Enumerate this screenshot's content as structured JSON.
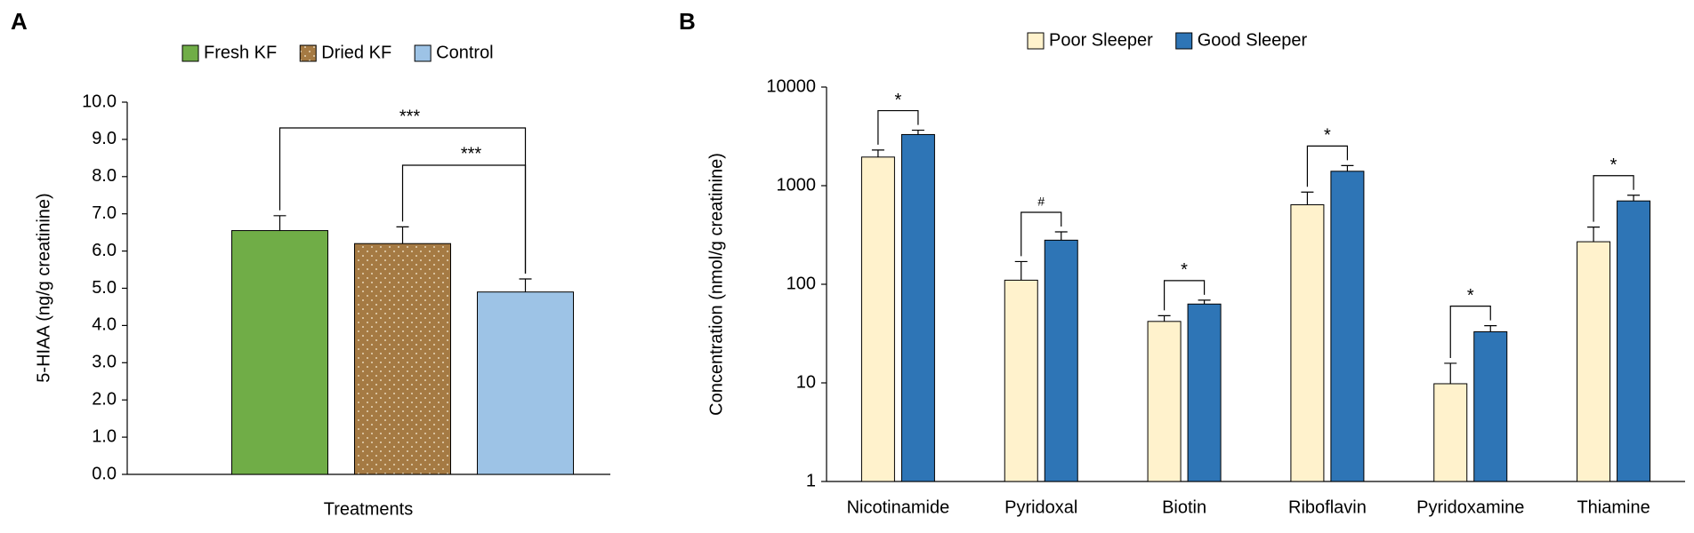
{
  "chart_data": [
    {
      "type": "bar",
      "panel": "A",
      "xlabel": "Treatments",
      "ylabel": "5-HIAA (ng/g creatinine)",
      "categories": [
        null
      ],
      "series": [
        {
          "name": "Fresh KF",
          "color": "#70ad47",
          "values": [
            6.55
          ],
          "errors": [
            0.4
          ]
        },
        {
          "name": "Dried KF",
          "color": "#a57a43",
          "pattern": "dots",
          "values": [
            6.2
          ],
          "errors": [
            0.45
          ]
        },
        {
          "name": "Control",
          "color": "#9dc3e6",
          "values": [
            4.9
          ],
          "errors": [
            0.35
          ]
        }
      ],
      "ylim": [
        0,
        10
      ],
      "yticks": [
        {
          "value": 0,
          "label": "0.0"
        },
        {
          "value": 1,
          "label": "1.0"
        },
        {
          "value": 2,
          "label": "2.0"
        },
        {
          "value": 3,
          "label": "3.0"
        },
        {
          "value": 4,
          "label": "4.0"
        },
        {
          "value": 5,
          "label": "5.0"
        },
        {
          "value": 6,
          "label": "6.0"
        },
        {
          "value": 7,
          "label": "7.0"
        },
        {
          "value": 8,
          "label": "8.0"
        },
        {
          "value": 9,
          "label": "9.0"
        },
        {
          "value": 10,
          "label": "10.0"
        }
      ],
      "annotations": [
        "***",
        "***"
      ],
      "legend": "top"
    },
    {
      "type": "bar",
      "panel": "B",
      "ylabel": "Concentration (nmol/g creatinine)",
      "log_scale": true,
      "categories": [
        "Nicotinamide",
        "Pyridoxal",
        "Biotin",
        "Riboflavin",
        "Pyridoxamine",
        "Thiamine"
      ],
      "series": [
        {
          "name": "Poor Sleeper",
          "color": "#fff2cc",
          "values": [
            1950,
            110,
            42,
            640,
            9.8,
            270
          ],
          "errors": [
            350,
            60,
            6,
            220,
            6,
            110
          ]
        },
        {
          "name": "Good Sleeper",
          "color": "#2e75b6",
          "values": [
            3300,
            280,
            63,
            1400,
            33,
            700
          ],
          "errors": [
            350,
            60,
            6,
            200,
            5,
            100
          ]
        }
      ],
      "ylim": [
        1,
        10000
      ],
      "yticks": [
        1,
        10,
        100,
        1000,
        10000
      ],
      "annotations": [
        "*",
        "#",
        "*",
        "*",
        "*",
        "*"
      ],
      "legend": "top"
    }
  ]
}
